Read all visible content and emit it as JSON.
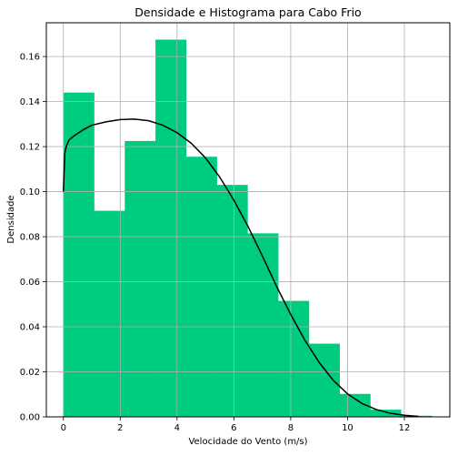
{
  "chart_data": {
    "type": "bar",
    "title": "Densidade e Histograma para Cabo Frio",
    "xlabel": "Velocidade do Vento (m/s)",
    "ylabel": "Densidade",
    "xlim": [
      -0.6,
      13.6
    ],
    "ylim": [
      0,
      0.175
    ],
    "xticks": [
      0,
      2,
      4,
      6,
      8,
      10,
      12
    ],
    "yticks": [
      0.0,
      0.02,
      0.04,
      0.06,
      0.08,
      0.1,
      0.12,
      0.14,
      0.16
    ],
    "grid": true,
    "histogram": {
      "color": "#00cc7f",
      "bins": [
        {
          "x0": 0.0,
          "x1": 1.08,
          "value": 0.144
        },
        {
          "x0": 1.08,
          "x1": 2.16,
          "value": 0.0915
        },
        {
          "x0": 2.16,
          "x1": 3.24,
          "value": 0.1225
        },
        {
          "x0": 3.24,
          "x1": 4.32,
          "value": 0.1675
        },
        {
          "x0": 4.32,
          "x1": 5.4,
          "value": 0.1155
        },
        {
          "x0": 5.4,
          "x1": 6.48,
          "value": 0.103
        },
        {
          "x0": 6.48,
          "x1": 7.56,
          "value": 0.0815
        },
        {
          "x0": 7.56,
          "x1": 8.64,
          "value": 0.0515
        },
        {
          "x0": 8.64,
          "x1": 9.72,
          "value": 0.0325
        },
        {
          "x0": 9.72,
          "x1": 10.8,
          "value": 0.0102
        },
        {
          "x0": 10.8,
          "x1": 11.88,
          "value": 0.0032
        },
        {
          "x0": 11.88,
          "x1": 12.96,
          "value": 0.0005
        }
      ]
    },
    "density_curve": {
      "color": "#000000",
      "x": [
        0.0,
        0.05,
        0.1,
        0.2,
        0.4,
        0.7,
        1.0,
        1.5,
        2.0,
        2.5,
        3.0,
        3.5,
        4.0,
        4.5,
        5.0,
        5.5,
        6.0,
        6.5,
        7.0,
        7.5,
        8.0,
        8.5,
        9.0,
        9.5,
        10.0,
        10.5,
        11.0,
        11.5,
        12.0,
        12.5
      ],
      "y": [
        0.1,
        0.117,
        0.12,
        0.123,
        0.125,
        0.1275,
        0.1295,
        0.131,
        0.132,
        0.1322,
        0.1315,
        0.1295,
        0.1262,
        0.1215,
        0.115,
        0.1065,
        0.0962,
        0.0845,
        0.0715,
        0.058,
        0.0455,
        0.034,
        0.0242,
        0.0162,
        0.0102,
        0.006,
        0.0033,
        0.0016,
        0.0007,
        0.0002
      ]
    }
  }
}
